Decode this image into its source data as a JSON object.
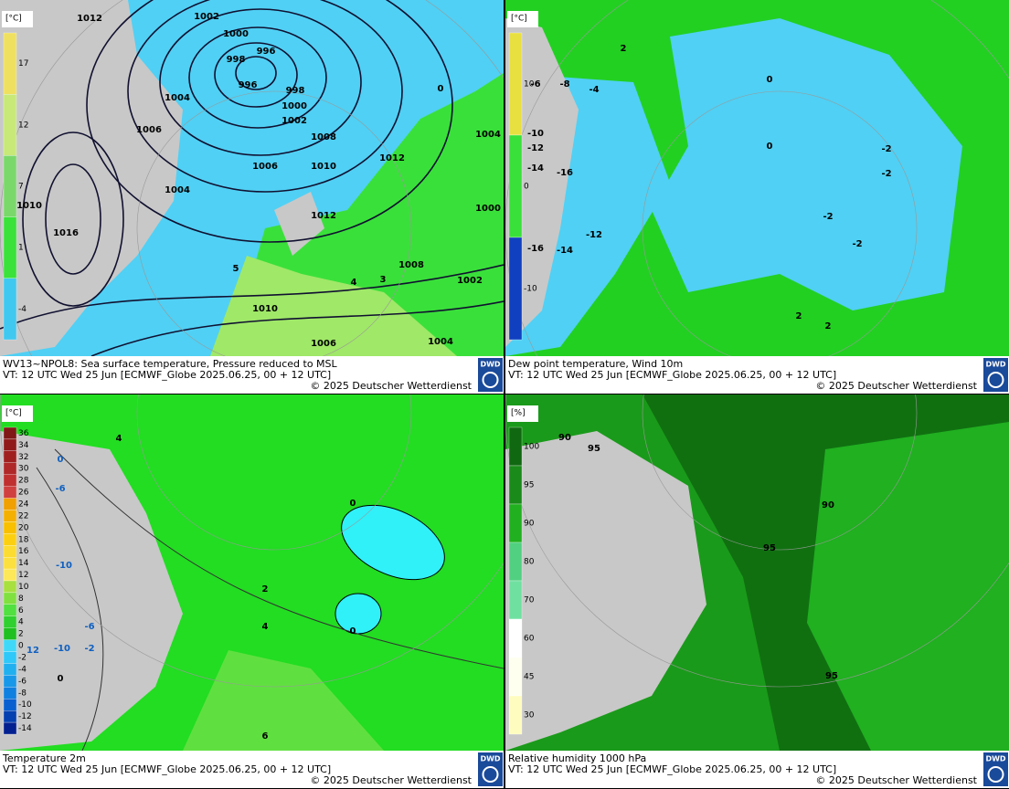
{
  "logo": "DWD",
  "panels": [
    {
      "caption": [
        "WV13~NPOL8: Sea surface temperature,  Pressure reduced to MSL",
        "VT: 12 UTC Wed  25 Jun [ECMWF_Globe 2025.06.25, 00 + 12 UTC]",
        "© 2025 Deutscher Wetterdienst"
      ],
      "legend": {
        "unit": "[°C]",
        "ticks": [
          "17",
          "12",
          "7",
          "1",
          "-4"
        ],
        "colors": [
          "#f0e060",
          "#c8e878",
          "#7ad86a",
          "#3ae23a",
          "#40c8f0"
        ]
      },
      "labels": [
        "1012",
        "1002",
        "1000",
        "996",
        "998",
        "996",
        "998",
        "1000",
        "1002",
        "1004",
        "1006",
        "1008",
        "1006",
        "1010",
        "1012",
        "1004",
        "1012",
        "1016",
        "1010",
        "1008",
        "1002",
        "1010",
        "1006",
        "1004",
        "1000",
        "1004",
        "0",
        "5",
        "4",
        "3"
      ]
    },
    {
      "caption": [
        "Dew point temperature, Wind 10m",
        "VT: 12 UTC Wed  25 Jun [ECMWF_Globe 2025.06.25, 00 + 12 UTC]",
        "© 2025 Deutscher Wetterdienst"
      ],
      "legend": {
        "unit": "[°C]",
        "ticks": [
          "10",
          "0",
          "-10"
        ],
        "colors": [
          "#e8e040",
          "#3ae03a",
          "#1040c0"
        ]
      },
      "labels": [
        "-6",
        "-8",
        "-4",
        "-10",
        "-12",
        "-14",
        "-16",
        "-12",
        "-16",
        "-14",
        "0",
        "0",
        "-2",
        "-2",
        "-2",
        "-2",
        "2",
        "2",
        "2"
      ]
    },
    {
      "caption": [
        "Temperature 2m",
        "VT: 12 UTC Wed  25 Jun [ECMWF_Globe 2025.06.25, 00 + 12 UTC]",
        "© 2025 Deutscher Wetterdienst"
      ],
      "legend": {
        "unit": "[°C]",
        "ticks": [
          "36",
          "34",
          "32",
          "30",
          "28",
          "26",
          "24",
          "22",
          "20",
          "18",
          "16",
          "14",
          "12",
          "10",
          "8",
          "6",
          "4",
          "2",
          "0",
          "-2",
          "-4",
          "-6",
          "-8",
          "-10",
          "-12",
          "-14"
        ],
        "colors": [
          "#801818",
          "#901a1a",
          "#a02020",
          "#b02828",
          "#c03030",
          "#d04040",
          "#f0a000",
          "#f4b000",
          "#f8c000",
          "#fcd010",
          "#fcdc30",
          "#fce040",
          "#fce858",
          "#a8e040",
          "#80e040",
          "#50e040",
          "#30d030",
          "#20c020",
          "#40d8f8",
          "#30c8f8",
          "#20b0f0",
          "#1898e8",
          "#1080e0",
          "#0860d0",
          "#0440b0",
          "#022090"
        ]
      },
      "labels": [
        "0",
        "-6",
        "-10",
        "-6",
        "-10",
        "-2",
        "12",
        "0",
        "0",
        "0",
        "2",
        "4",
        "6",
        "4"
      ]
    },
    {
      "caption": [
        "Relative humidity 1000 hPa",
        "VT: 12 UTC Wed  25 Jun [ECMWF_Globe 2025.06.25, 00 + 12 UTC]",
        "© 2025 Deutscher Wetterdienst"
      ],
      "legend": {
        "unit": "[%]",
        "ticks": [
          "100",
          "95",
          "90",
          "80",
          "70",
          "60",
          "45",
          "30"
        ],
        "colors": [
          "#106810",
          "#1a8a1a",
          "#20b020",
          "#50d080",
          "#70e0a0",
          "#ffffff",
          "#fffff0",
          "#fffcc0"
        ]
      },
      "labels": [
        "90",
        "95",
        "90",
        "95",
        "95"
      ]
    }
  ]
}
